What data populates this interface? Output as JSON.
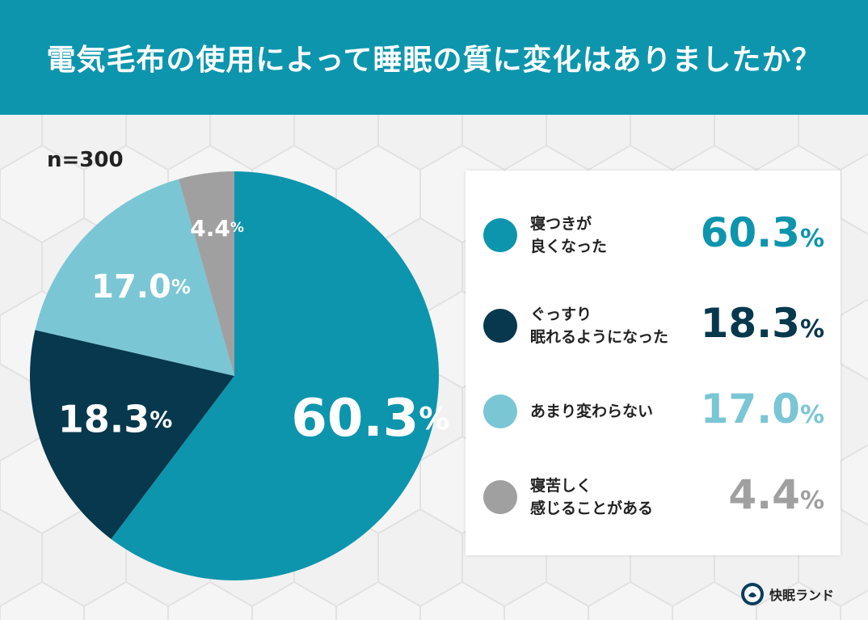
{
  "header": {
    "title": "電気毛布の使用によって睡眠の質に変化はありましたか？"
  },
  "sample_size": "n=300",
  "colors": {
    "header_bg": "#0d95ad",
    "series": [
      "#0d95ad",
      "#07384d",
      "#7ac6d4",
      "#a0a0a0"
    ]
  },
  "chart_data": {
    "type": "pie",
    "title": "電気毛布の使用によって睡眠の質に変化はありましたか？",
    "sample_size": "n=300",
    "legend_position": "right",
    "slices": [
      {
        "label": "寝つきが\n良くなった",
        "value": 60.3,
        "display": "60.3",
        "color": "#0d95ad"
      },
      {
        "label": "ぐっすり\n眠れるようになった",
        "value": 18.3,
        "display": "18.3",
        "color": "#07384d"
      },
      {
        "label": "あまり変わらない",
        "value": 17.0,
        "display": "17.0",
        "color": "#7ac6d4"
      },
      {
        "label": "寝苦しく\n感じることがある",
        "value": 4.4,
        "display": "4.4",
        "color": "#a0a0a0"
      }
    ],
    "unit": "%"
  },
  "brand": {
    "name": "快眠ランド",
    "icon": "sleep-land-logo-icon"
  }
}
